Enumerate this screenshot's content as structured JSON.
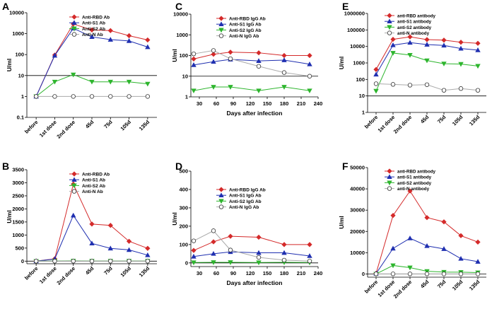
{
  "colors": {
    "rbd": "#d42a2a",
    "s1": "#1f2fb0",
    "s2": "#2db52d",
    "n": "#888888"
  },
  "chart_data": [
    {
      "id": "A",
      "panel_label": "A",
      "type": "line",
      "scale": "log",
      "ylabel": "U/ml",
      "xlabel": "",
      "categories": [
        "before",
        "1st dose",
        "2nd dose",
        "45d",
        "75d",
        "105d",
        "135d"
      ],
      "yticks": [
        0.1,
        1,
        10,
        100,
        1000,
        10000
      ],
      "ytick_labels": [
        "0.1",
        "1",
        "10",
        "100",
        "1000",
        "10000"
      ],
      "ylim": [
        0.1,
        10000
      ],
      "ref_line": 10,
      "series": [
        {
          "name": "Anti-RBD Ab",
          "color_key": "rbd",
          "marker": "diamond",
          "values": [
            1,
            95,
            2900,
            1500,
            1400,
            800,
            500
          ]
        },
        {
          "name": "Anti-S1 Ab",
          "color_key": "s1",
          "marker": "triangle-up",
          "values": [
            1,
            90,
            1800,
            700,
            520,
            450,
            230
          ]
        },
        {
          "name": "Anti-S2 Ab",
          "color_key": "s2",
          "marker": "triangle-down",
          "values": [
            1,
            5,
            11,
            5,
            5,
            5,
            4
          ]
        },
        {
          "name": "Anti-N Ab",
          "color_key": "n",
          "marker": "circle",
          "values": [
            1,
            1,
            1,
            1,
            1,
            1,
            1
          ]
        }
      ]
    },
    {
      "id": "B",
      "panel_label": "B",
      "type": "line",
      "scale": "linear",
      "ylabel": "U/ml",
      "xlabel": "",
      "categories": [
        "before",
        "1st dose",
        "2nd dose",
        "45d",
        "75d",
        "105d",
        "135d"
      ],
      "yticks": [
        0,
        500,
        1000,
        1500,
        2000,
        2500,
        3000,
        3500
      ],
      "ytick_labels": [
        "0",
        "500",
        "1000",
        "1500",
        "2000",
        "2500",
        "3000",
        "3500"
      ],
      "ylim": [
        -100,
        3500
      ],
      "ref_line": 0,
      "series": [
        {
          "name": "Anti-RBD Ab",
          "color_key": "rbd",
          "marker": "diamond",
          "values": [
            0,
            90,
            2950,
            1420,
            1370,
            760,
            490
          ]
        },
        {
          "name": "Anti-S1 Ab",
          "color_key": "s1",
          "marker": "triangle-up",
          "values": [
            0,
            80,
            1750,
            680,
            490,
            430,
            230
          ]
        },
        {
          "name": "Anti-S2 Ab",
          "color_key": "s2",
          "marker": "triangle-down",
          "values": [
            0,
            5,
            10,
            5,
            5,
            5,
            4
          ]
        },
        {
          "name": "Anti-N Ab",
          "color_key": "n",
          "marker": "circle",
          "values": [
            0,
            0,
            0,
            0,
            0,
            0,
            0
          ]
        }
      ]
    },
    {
      "id": "C",
      "panel_label": "C",
      "type": "line",
      "scale": "log",
      "ylabel": "U/ml",
      "xlabel": "Days after infection",
      "xticks": [
        30,
        60,
        90,
        120,
        150,
        180,
        210,
        240
      ],
      "xlim": [
        15,
        240
      ],
      "yticks": [
        1,
        10,
        100,
        1000,
        10000
      ],
      "ytick_labels": [
        "1",
        "10",
        "100",
        "1000",
        "10000"
      ],
      "ylim": [
        1,
        10000
      ],
      "ref_line": 10,
      "series": [
        {
          "name": "Anti-RBD IgG Ab",
          "color_key": "rbd",
          "marker": "diamond",
          "x": [
            20,
            55,
            85,
            135,
            180,
            225
          ],
          "values": [
            68,
            115,
            145,
            135,
            100,
            100
          ]
        },
        {
          "name": "Anti-S1 IgG Ab",
          "color_key": "s1",
          "marker": "triangle-up",
          "x": [
            20,
            55,
            85,
            135,
            180,
            225
          ],
          "values": [
            35,
            50,
            65,
            55,
            60,
            38
          ]
        },
        {
          "name": "Anti-S2 IgG Ab",
          "color_key": "s2",
          "marker": "triangle-down",
          "x": [
            20,
            55,
            85,
            135,
            180,
            225
          ],
          "values": [
            2,
            3,
            3,
            2,
            3,
            2
          ]
        },
        {
          "name": "Anti-N IgG Ab",
          "color_key": "n",
          "marker": "circle",
          "x": [
            20,
            55,
            85,
            135,
            180,
            225
          ],
          "values": [
            120,
            175,
            70,
            30,
            15,
            10
          ]
        }
      ]
    },
    {
      "id": "D",
      "panel_label": "D",
      "type": "line",
      "scale": "linear",
      "ylabel": "U/ml",
      "xlabel": "Days after infection",
      "xticks": [
        30,
        60,
        90,
        120,
        150,
        180,
        210,
        240
      ],
      "xlim": [
        15,
        240
      ],
      "yticks": [
        0,
        100,
        200,
        300,
        400,
        500
      ],
      "ytick_labels": [
        "0",
        "100",
        "200",
        "300",
        "400",
        "500"
      ],
      "ylim": [
        -20,
        500
      ],
      "ref_line": 0,
      "series": [
        {
          "name": "Anti-RBD IgG Ab",
          "color_key": "rbd",
          "marker": "diamond",
          "x": [
            20,
            55,
            85,
            135,
            180,
            225
          ],
          "values": [
            68,
            115,
            145,
            140,
            100,
            100
          ]
        },
        {
          "name": "Anti-S1 IgG Ab",
          "color_key": "s1",
          "marker": "triangle-up",
          "x": [
            20,
            55,
            85,
            135,
            180,
            225
          ],
          "values": [
            35,
            50,
            60,
            55,
            55,
            38
          ]
        },
        {
          "name": "Anti-S2 IgG Ab",
          "color_key": "s2",
          "marker": "triangle-down",
          "x": [
            20,
            55,
            85,
            135,
            180,
            225
          ],
          "values": [
            2,
            3,
            3,
            2,
            3,
            2
          ]
        },
        {
          "name": "Anti-N IgG Ab",
          "color_key": "n",
          "marker": "circle",
          "x": [
            20,
            55,
            85,
            135,
            180,
            225
          ],
          "values": [
            120,
            175,
            70,
            30,
            15,
            10
          ]
        }
      ]
    },
    {
      "id": "E",
      "panel_label": "E",
      "type": "line",
      "scale": "log",
      "ylabel": "U/ml",
      "xlabel": "",
      "categories": [
        "before",
        "1st dose",
        "2nd dose",
        "45d",
        "75d",
        "105d",
        "135d"
      ],
      "yticks": [
        1,
        10,
        100,
        1000,
        10000,
        100000,
        1000000
      ],
      "ytick_labels": [
        "1",
        "10",
        "100",
        "1000",
        "10000",
        "100000",
        "1000000"
      ],
      "ylim": [
        1,
        1000000
      ],
      "ref_line": 10,
      "series": [
        {
          "name": "anti-RBD antibody",
          "color_key": "rbd",
          "marker": "diamond",
          "values": [
            400,
            27000,
            38000,
            26000,
            24000,
            18000,
            15500
          ]
        },
        {
          "name": "anti-S1 antibody",
          "color_key": "s1",
          "marker": "triangle-up",
          "values": [
            200,
            12000,
            17000,
            13000,
            11500,
            7500,
            6000
          ]
        },
        {
          "name": "anti-S2 antibody",
          "color_key": "s2",
          "marker": "triangle-down",
          "values": [
            20,
            4000,
            3000,
            1400,
            900,
            850,
            650
          ]
        },
        {
          "name": "anti-N antibody",
          "color_key": "n",
          "marker": "circle",
          "values": [
            55,
            50,
            45,
            48,
            22,
            28,
            22
          ]
        }
      ]
    },
    {
      "id": "F",
      "panel_label": "F",
      "type": "line",
      "scale": "linear",
      "ylabel": "U/ml",
      "xlabel": "",
      "categories": [
        "before",
        "1st dose",
        "2nd dose",
        "45d",
        "75d",
        "105d",
        "135d"
      ],
      "yticks": [
        0,
        10000,
        20000,
        30000,
        40000,
        50000
      ],
      "ytick_labels": [
        "0",
        "10000",
        "20000",
        "30000",
        "40000",
        "50000"
      ],
      "ylim": [
        -1500,
        50000
      ],
      "ref_line": 0,
      "series": [
        {
          "name": "anti-RBD antibody",
          "color_key": "rbd",
          "marker": "diamond",
          "values": [
            300,
            27500,
            39000,
            26500,
            24500,
            18000,
            15000
          ]
        },
        {
          "name": "anti-S1 antibody",
          "color_key": "s1",
          "marker": "triangle-up",
          "values": [
            200,
            12000,
            16800,
            13200,
            11800,
            7200,
            5800
          ]
        },
        {
          "name": "anti-S2 antibody",
          "color_key": "s2",
          "marker": "triangle-down",
          "values": [
            20,
            4000,
            3000,
            1300,
            900,
            850,
            650
          ]
        },
        {
          "name": "anti-N antibody",
          "color_key": "n",
          "marker": "circle",
          "values": [
            50,
            50,
            45,
            48,
            22,
            28,
            22
          ]
        }
      ]
    }
  ]
}
